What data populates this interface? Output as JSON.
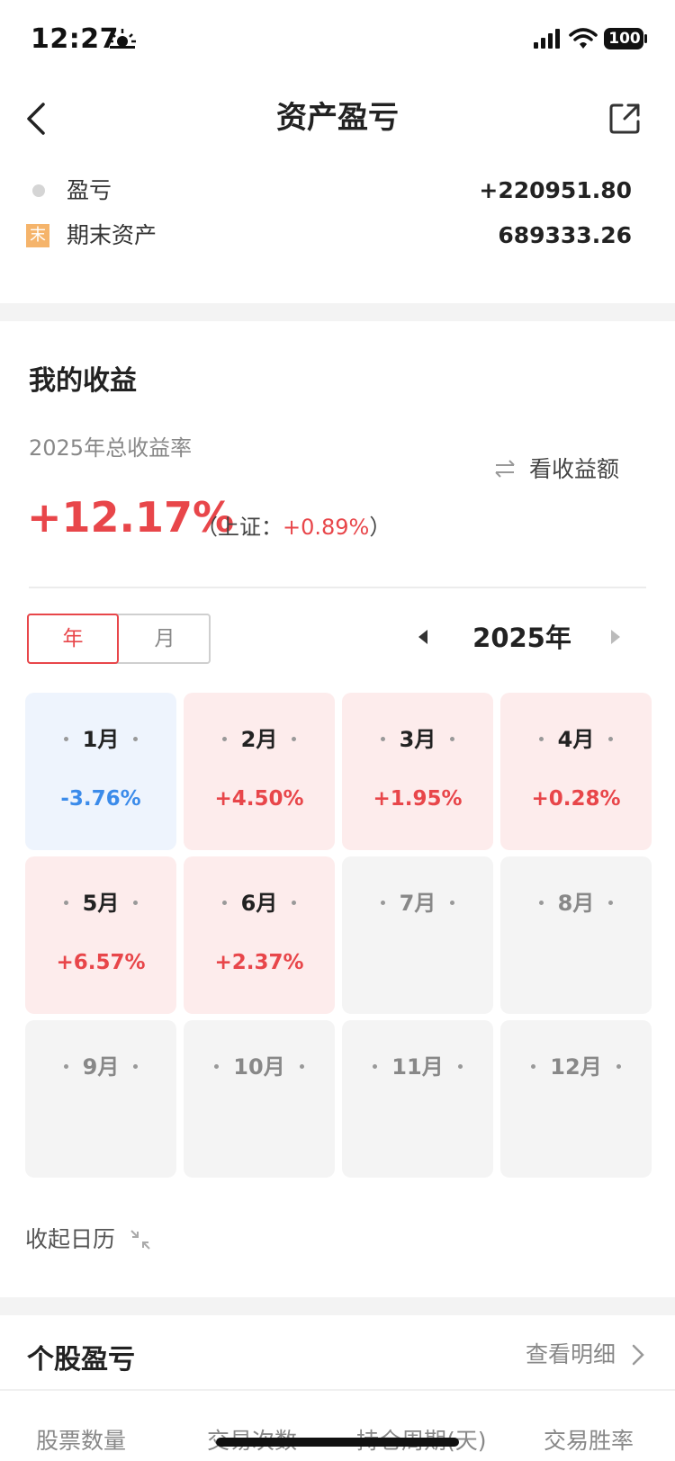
{
  "status_bar": {
    "time": "12:27",
    "battery": "100",
    "icons": [
      "sunrise-icon",
      "signal-icon",
      "wifi-icon",
      "battery-icon"
    ]
  },
  "nav": {
    "title": "资产盈亏",
    "icons": [
      "back-arrow-icon",
      "share-icon"
    ]
  },
  "legend": {
    "profit_label": "盈亏",
    "profit_value": "+220951.80",
    "assets_badge": "末",
    "assets_label": "期末资产",
    "assets_value": "689333.26"
  },
  "income": {
    "section_title": "我的收益",
    "rate_caption": "2025年总收益率",
    "toggle_label": "看收益额",
    "total_rate": "+12.17%",
    "compare_prefix": "（上证：",
    "compare_value": "+0.89%",
    "compare_suffix": "）"
  },
  "period": {
    "year_tab": "年",
    "month_tab": "月",
    "selected_tab": "年",
    "year_label": "2025年"
  },
  "months": [
    {
      "name": "1月",
      "rate": "-3.76%",
      "status": "neg"
    },
    {
      "name": "2月",
      "rate": "+4.50%",
      "status": "pos"
    },
    {
      "name": "3月",
      "rate": "+1.95%",
      "status": "pos"
    },
    {
      "name": "4月",
      "rate": "+0.28%",
      "status": "pos"
    },
    {
      "name": "5月",
      "rate": "+6.57%",
      "status": "pos"
    },
    {
      "name": "6月",
      "rate": "+2.37%",
      "status": "pos"
    },
    {
      "name": "7月",
      "rate": "",
      "status": "none"
    },
    {
      "name": "8月",
      "rate": "",
      "status": "none"
    },
    {
      "name": "9月",
      "rate": "",
      "status": "none"
    },
    {
      "name": "10月",
      "rate": "",
      "status": "none"
    },
    {
      "name": "11月",
      "rate": "",
      "status": "none"
    },
    {
      "name": "12月",
      "rate": "",
      "status": "none"
    }
  ],
  "calendar": {
    "collapse_label": "收起日历"
  },
  "stocks": {
    "section_title": "个股盈亏",
    "detail_link": "查看明细",
    "stats": [
      "股票数量",
      "交易次数",
      "持仓周期(天)",
      "交易胜率"
    ]
  },
  "colors": {
    "red": "#e8464a",
    "blue": "#3b8bea",
    "pos_bg": "#fdecec",
    "neg_bg": "#eef4fd",
    "none_bg": "#f4f4f4"
  }
}
